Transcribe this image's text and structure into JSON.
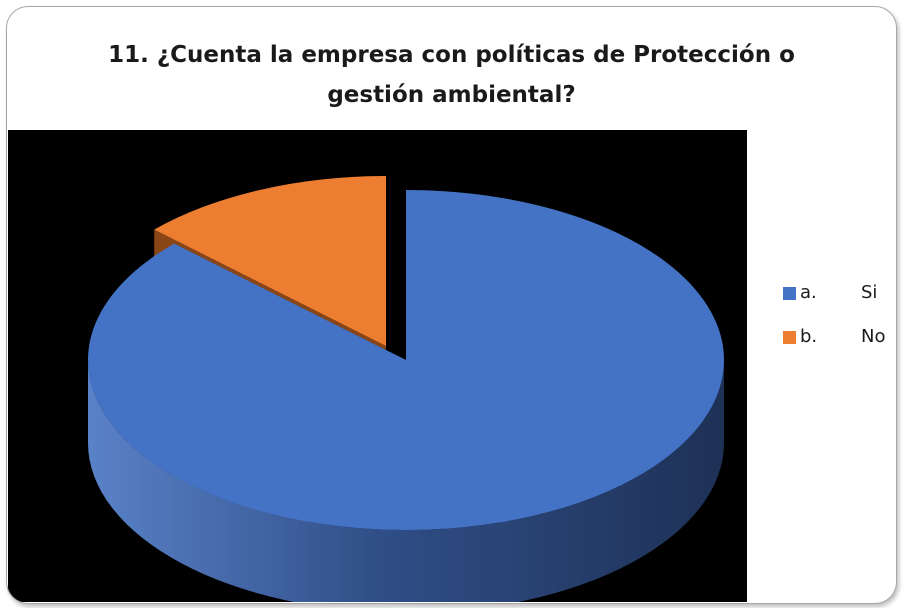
{
  "chart_data": {
    "type": "pie",
    "title_lines": [
      "11. ¿Cuenta la empresa con políticas de Protección o",
      "gestión ambiental?"
    ],
    "slices": [
      {
        "legend_prefix": "a.",
        "label": "Si",
        "value": 87,
        "color": "#4472C4",
        "side_color": "#2F4E86"
      },
      {
        "legend_prefix": "b.",
        "label": "No",
        "value": 13,
        "color": "#ED7D31",
        "side_color": "#8A4517"
      }
    ],
    "style": "3d-exploded",
    "background": "#000000",
    "legend_position": "right"
  }
}
